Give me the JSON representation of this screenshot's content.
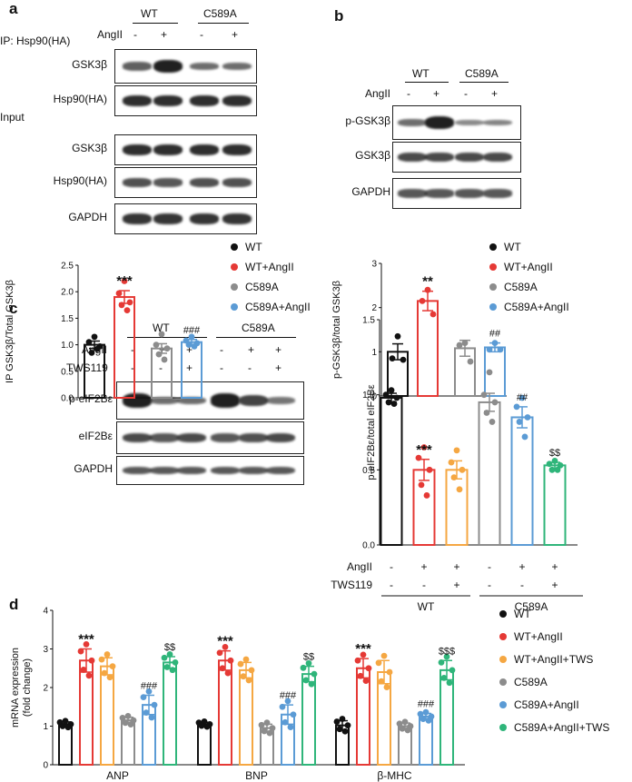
{
  "panel_a": {
    "label": "a",
    "ip_label": "IP: Hsp90(HA)",
    "input_label": "Input",
    "angii_label": "AngII",
    "groups": [
      "WT",
      "C589A"
    ],
    "treat": [
      "-",
      "+",
      "-",
      "+"
    ],
    "blots": [
      "GSK3β",
      "Hsp90(HA)",
      "GSK3β",
      "Hsp90(HA)",
      "GAPDH"
    ]
  },
  "panel_b": {
    "label": "b",
    "angii_label": "AngII",
    "groups": [
      "WT",
      "C589A"
    ],
    "treat": [
      "-",
      "+",
      "-",
      "+"
    ],
    "blots": [
      "p-GSK3β",
      "GSK3β",
      "GAPDH"
    ]
  },
  "panel_c": {
    "label": "c",
    "angii_label": "AngII",
    "tws_label": "TWS119",
    "groups": [
      "WT",
      "C589A"
    ],
    "angii": [
      "-",
      "+",
      "+",
      "-",
      "+",
      "+"
    ],
    "tws": [
      "-",
      "-",
      "+",
      "-",
      "-",
      "+"
    ],
    "blots": [
      "p-eIF2Bε",
      "eIF2Bε",
      "GAPDH"
    ]
  },
  "panel_d": {
    "label": "d"
  },
  "colors": {
    "WT": "#111111",
    "WT_AngII": "#e53935",
    "WT_AngII_TWS": "#f5a742",
    "C589A": "#8c8c8c",
    "C589A_AngII": "#5b9bd5",
    "C589A_AngII_TWS": "#2fb57a"
  },
  "chart_data": [
    {
      "type": "bar",
      "id": "a",
      "ylabel": "IP GSK3β/Total GSK3β",
      "ylim": [
        0,
        2.5
      ],
      "yticks": [
        "0.0",
        "0.5",
        "1.0",
        "1.5",
        "2.0",
        "2.5"
      ],
      "categories": [
        "WT",
        "WT+AngII",
        "C589A",
        "C589A+AngII"
      ],
      "values": [
        1.0,
        1.9,
        0.93,
        1.05
      ],
      "errors": [
        0.07,
        0.12,
        0.09,
        0.05
      ],
      "points": [
        [
          1.15,
          1.05,
          0.97,
          0.85,
          0.92
        ],
        [
          2.2,
          1.97,
          1.8,
          1.75,
          1.65
        ],
        [
          1.2,
          1.0,
          0.93,
          0.82,
          0.72
        ],
        [
          1.15,
          1.08,
          1.03,
          1.0,
          0.97
        ]
      ],
      "annotations": [
        "",
        "***",
        "",
        "###"
      ],
      "legend": [
        "WT",
        "WT+AngII",
        "C589A",
        "C589A+AngII"
      ]
    },
    {
      "type": "bar",
      "id": "b",
      "ylabel": "p-GSK3β/total GSK3β",
      "ylim": [
        0,
        3
      ],
      "yticks": [
        "0",
        "1",
        "2",
        "3"
      ],
      "categories": [
        "WT",
        "WT+AngII",
        "C589A",
        "C589A+AngII"
      ],
      "values": [
        1.0,
        2.15,
        1.08,
        1.1
      ],
      "errors": [
        0.18,
        0.22,
        0.18,
        0.1
      ],
      "points": [
        [
          1.35,
          0.85,
          0.82
        ],
        [
          2.4,
          2.15,
          1.85
        ],
        [
          1.2,
          1.15,
          0.78
        ],
        [
          1.2,
          1.05,
          1.05
        ]
      ],
      "annotations": [
        "",
        "**",
        "",
        "##"
      ],
      "legend": [
        "WT",
        "WT+AngII",
        "C589A",
        "C589A+AngII"
      ]
    },
    {
      "type": "bar",
      "id": "c",
      "ylabel": "p-eIF2Bε/total eIF2Bε",
      "ylim": [
        0,
        1.5
      ],
      "yticks": [
        "0.0",
        "0.5",
        "1.0",
        "1.5"
      ],
      "categories": [
        "WT",
        "WT+AngII",
        "WT+AngII+TWS119",
        "C589A",
        "C589A+AngII",
        "C589A+AngII+TWS119"
      ],
      "values": [
        0.98,
        0.5,
        0.5,
        0.95,
        0.85,
        0.53
      ],
      "errors": [
        0.03,
        0.07,
        0.06,
        0.06,
        0.07,
        0.02
      ],
      "points": [
        [
          1.03,
          1.0,
          0.98,
          0.95,
          0.94
        ],
        [
          0.65,
          0.58,
          0.5,
          0.4,
          0.33
        ],
        [
          0.63,
          0.55,
          0.5,
          0.45,
          0.37
        ],
        [
          1.15,
          1.0,
          0.95,
          0.88,
          0.82
        ],
        [
          0.98,
          0.92,
          0.85,
          0.82,
          0.72
        ],
        [
          0.56,
          0.54,
          0.53,
          0.5,
          0.5
        ]
      ],
      "annotations": [
        "",
        "***",
        "",
        "",
        "##",
        "$$"
      ],
      "xrows": [
        {
          "label": "AngII",
          "values": [
            "-",
            "+",
            "+",
            "-",
            "+",
            "+"
          ]
        },
        {
          "label": "TWS119",
          "values": [
            "-",
            "-",
            "+",
            "-",
            "-",
            "+"
          ]
        }
      ],
      "groups": [
        "WT",
        "C589A"
      ]
    },
    {
      "type": "bar",
      "id": "d",
      "ylabel": "mRNA expression",
      "ylabel2": "(fold change)",
      "ylim": [
        0,
        4
      ],
      "yticks": [
        "0",
        "1",
        "2",
        "3",
        "4"
      ],
      "categories": [
        "ANP",
        "BNP",
        "β-MHC"
      ],
      "series": [
        {
          "name": "WT",
          "values": [
            1.05,
            1.05,
            1.02
          ],
          "errors": [
            0.06,
            0.05,
            0.12
          ]
        },
        {
          "name": "WT+AngII",
          "values": [
            2.7,
            2.7,
            2.5
          ],
          "errors": [
            0.3,
            0.25,
            0.25
          ]
        },
        {
          "name": "WT+AngII+TWS",
          "values": [
            2.55,
            2.45,
            2.4
          ],
          "errors": [
            0.22,
            0.2,
            0.3
          ]
        },
        {
          "name": "C589A",
          "values": [
            1.15,
            0.95,
            1.0
          ],
          "errors": [
            0.08,
            0.1,
            0.08
          ]
        },
        {
          "name": "C589A+AngII",
          "values": [
            1.55,
            1.3,
            1.25
          ],
          "errors": [
            0.25,
            0.25,
            0.08
          ]
        },
        {
          "name": "C589A+AngII+TWS",
          "values": [
            2.65,
            2.35,
            2.45
          ],
          "errors": [
            0.15,
            0.2,
            0.25
          ]
        }
      ],
      "annotations": [
        {
          "series": 1,
          "text": "***"
        },
        {
          "series": 4,
          "text": "###"
        },
        {
          "series": 5,
          "text": "$$"
        }
      ],
      "annotation_overrides": {
        "2-5": "$$$"
      },
      "legend": [
        "WT",
        "WT+AngII",
        "WT+AngII+TWS",
        "C589A",
        "C589A+AngII",
        "C589A+AngII+TWS"
      ]
    }
  ]
}
